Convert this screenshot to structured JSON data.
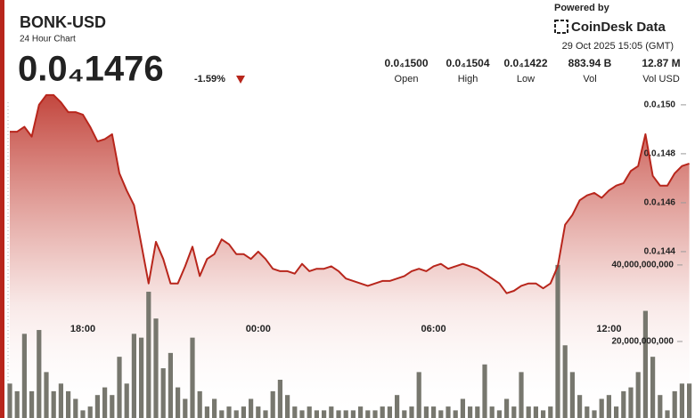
{
  "header": {
    "price": "0.0₄1476",
    "change": "-1.59%",
    "powered_by": "Powered by",
    "brand": "CoinDesk Data",
    "timestamp": "29 Oct 2025 15:05 (GMT)",
    "stats": [
      {
        "value": "0.0₄1500",
        "label": "Open"
      },
      {
        "value": "0.0₄1504",
        "label": "High"
      },
      {
        "value": "0.0₄1422",
        "label": "Low"
      },
      {
        "value": "883.94 B",
        "label": "Vol"
      },
      {
        "value": "12.87 M",
        "label": "Vol USD"
      }
    ]
  },
  "chart_data": {
    "type": "line",
    "title": "BONK-USD",
    "subtitle": "24 Hour Chart",
    "categories": [
      null,
      null,
      null,
      null,
      null,
      null,
      null,
      null,
      null,
      null,
      "18:00",
      null,
      null,
      null,
      null,
      null,
      null,
      null,
      null,
      null,
      null,
      null,
      null,
      null,
      null,
      null,
      null,
      null,
      null,
      null,
      null,
      null,
      null,
      null,
      "00:00",
      null,
      null,
      null,
      null,
      null,
      null,
      null,
      null,
      null,
      null,
      null,
      null,
      null,
      null,
      null,
      null,
      null,
      null,
      null,
      null,
      null,
      null,
      null,
      "06:00",
      null,
      null,
      null,
      null,
      null,
      null,
      null,
      null,
      null,
      null,
      null,
      null,
      null,
      null,
      null,
      null,
      null,
      null,
      null,
      null,
      null,
      null,
      null,
      "12:00",
      null,
      null,
      null,
      null,
      null,
      null,
      null,
      null,
      null,
      null,
      null
    ],
    "series": [
      {
        "color": "#b8261c",
        "values": [
          1.489e-05,
          1.489e-05,
          1.491e-05,
          1.487e-05,
          1.5e-05,
          1.504e-05,
          1.504e-05,
          1.501e-05,
          1.497e-05,
          1.497e-05,
          1.496e-05,
          1.491e-05,
          1.485e-05,
          1.486e-05,
          1.488e-05,
          1.472e-05,
          1.465e-05,
          1.459e-05,
          1.443e-05,
          1.427e-05,
          1.444e-05,
          1.437e-05,
          1.427e-05,
          1.427e-05,
          1.434e-05,
          1.442e-05,
          1.43e-05,
          1.437e-05,
          1.439e-05,
          1.445e-05,
          1.443e-05,
          1.439e-05,
          1.439e-05,
          1.437e-05,
          1.44e-05,
          1.437e-05,
          1.433e-05,
          1.432e-05,
          1.432e-05,
          1.431e-05,
          1.435e-05,
          1.432e-05,
          1.433e-05,
          1.433e-05,
          1.434e-05,
          1.432e-05,
          1.429e-05,
          1.428e-05,
          1.427e-05,
          1.426e-05,
          1.427e-05,
          1.428e-05,
          1.428e-05,
          1.429e-05,
          1.43e-05,
          1.432e-05,
          1.433e-05,
          1.432e-05,
          1.434e-05,
          1.435e-05,
          1.433e-05,
          1.434e-05,
          1.435e-05,
          1.434e-05,
          1.433e-05,
          1.431e-05,
          1.429e-05,
          1.427e-05,
          1.423e-05,
          1.424e-05,
          1.426e-05,
          1.427e-05,
          1.427e-05,
          1.425e-05,
          1.427e-05,
          1.434e-05,
          1.451e-05,
          1.455e-05,
          1.461e-05,
          1.463e-05,
          1.464e-05,
          1.462e-05,
          1.465e-05,
          1.467e-05,
          1.468e-05,
          1.473e-05,
          1.475e-05,
          1.488e-05,
          1.471e-05,
          1.467e-05,
          1.467e-05,
          1.472e-05,
          1.475e-05,
          1.476e-05
        ]
      },
      {
        "type": "bar",
        "axis": "y2",
        "color": "#77776e",
        "values": [
          9000000000,
          7000000000,
          22000000000,
          7000000000,
          23000000000,
          12000000000,
          7000000000,
          9000000000,
          7000000000,
          5000000000,
          2000000000,
          3000000000,
          6000000000,
          8000000000,
          6000000000,
          16000000000,
          9000000000,
          22000000000,
          21000000000,
          33000000000,
          26000000000,
          13000000000,
          17000000000,
          8000000000,
          5000000000,
          21000000000,
          7000000000,
          3000000000,
          5000000000,
          2000000000,
          3000000000,
          2000000000,
          3000000000,
          5000000000,
          3000000000,
          2000000000,
          7000000000,
          10000000000,
          6000000000,
          3000000000,
          2000000000,
          3000000000,
          2000000000,
          2000000000,
          3000000000,
          2000000000,
          2000000000,
          2000000000,
          3000000000,
          2000000000,
          2000000000,
          3000000000,
          3000000000,
          6000000000,
          2000000000,
          3000000000,
          12000000000,
          3000000000,
          3000000000,
          2000000000,
          3000000000,
          2000000000,
          5000000000,
          3000000000,
          3000000000,
          14000000000,
          3000000000,
          2000000000,
          5000000000,
          3000000000,
          12000000000,
          3000000000,
          3000000000,
          2000000000,
          3000000000,
          40000000000,
          19000000000,
          12000000000,
          6000000000,
          3000000000,
          2000000000,
          5000000000,
          6000000000,
          3000000000,
          7000000000,
          8000000000,
          12000000000,
          28000000000,
          16000000000,
          6000000000,
          2000000000,
          7000000000,
          9000000000,
          9000000000
        ]
      }
    ],
    "ylim": [
      1.372e-05,
      1.5065e-05
    ],
    "yticks": [
      {
        "value": 1.5e-05,
        "label": "0.0₄150"
      },
      {
        "value": 1.48e-05,
        "label": "0.0₄148"
      },
      {
        "value": 1.46e-05,
        "label": "0.0₄146"
      },
      {
        "value": 1.44e-05,
        "label": "0.0₄144"
      }
    ],
    "y2lim": [
      0,
      86000000000
    ],
    "y2ticks": [
      {
        "value": 40000000000,
        "label": "40,000,000,000"
      },
      {
        "value": 20000000000,
        "label": "20,000,000,000"
      }
    ]
  }
}
